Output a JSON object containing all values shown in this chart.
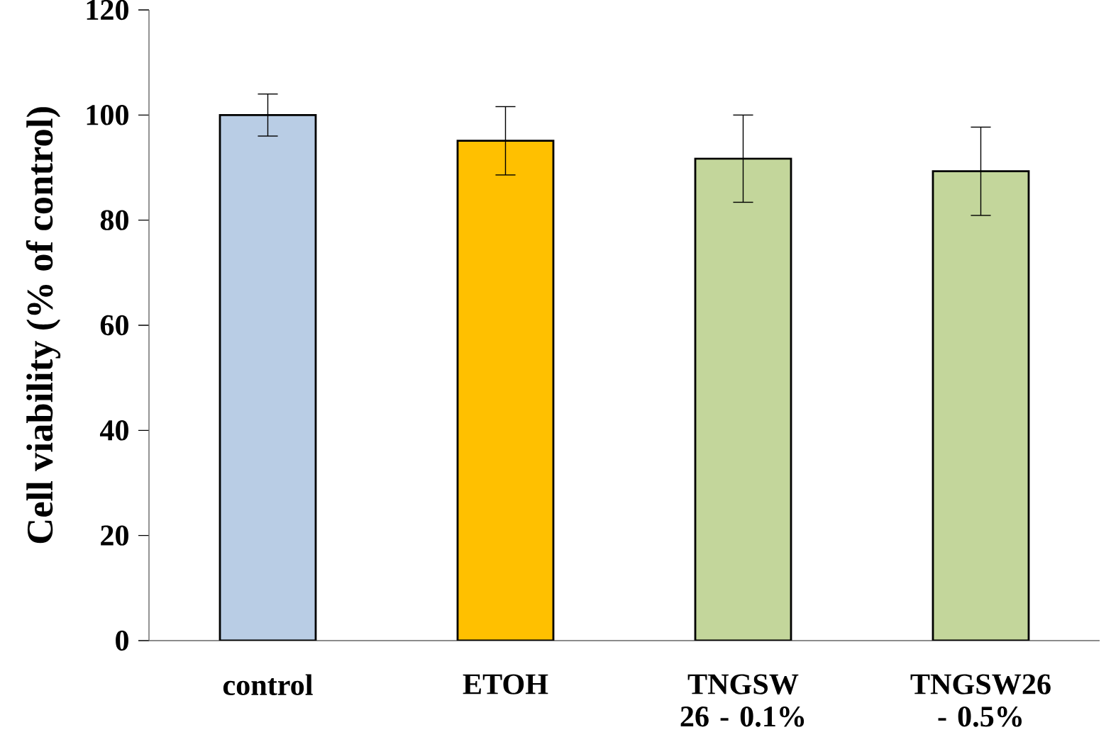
{
  "chart_data": {
    "type": "bar",
    "ylabel": "Cell viability (% of control)",
    "categories": [
      "control",
      "ETOH",
      "TNGSW 26 - 0.1%",
      "TNGSW26 - 0.5%"
    ],
    "values": [
      100,
      95.1,
      91.7,
      89.3
    ],
    "errors": [
      4.0,
      6.5,
      8.3,
      8.4
    ],
    "colors": [
      "#b9cde5",
      "#ffc000",
      "#c3d69b",
      "#c3d69b"
    ],
    "ylim": [
      0,
      120
    ],
    "yticks": [
      0,
      20,
      40,
      60,
      80,
      100,
      120
    ]
  }
}
